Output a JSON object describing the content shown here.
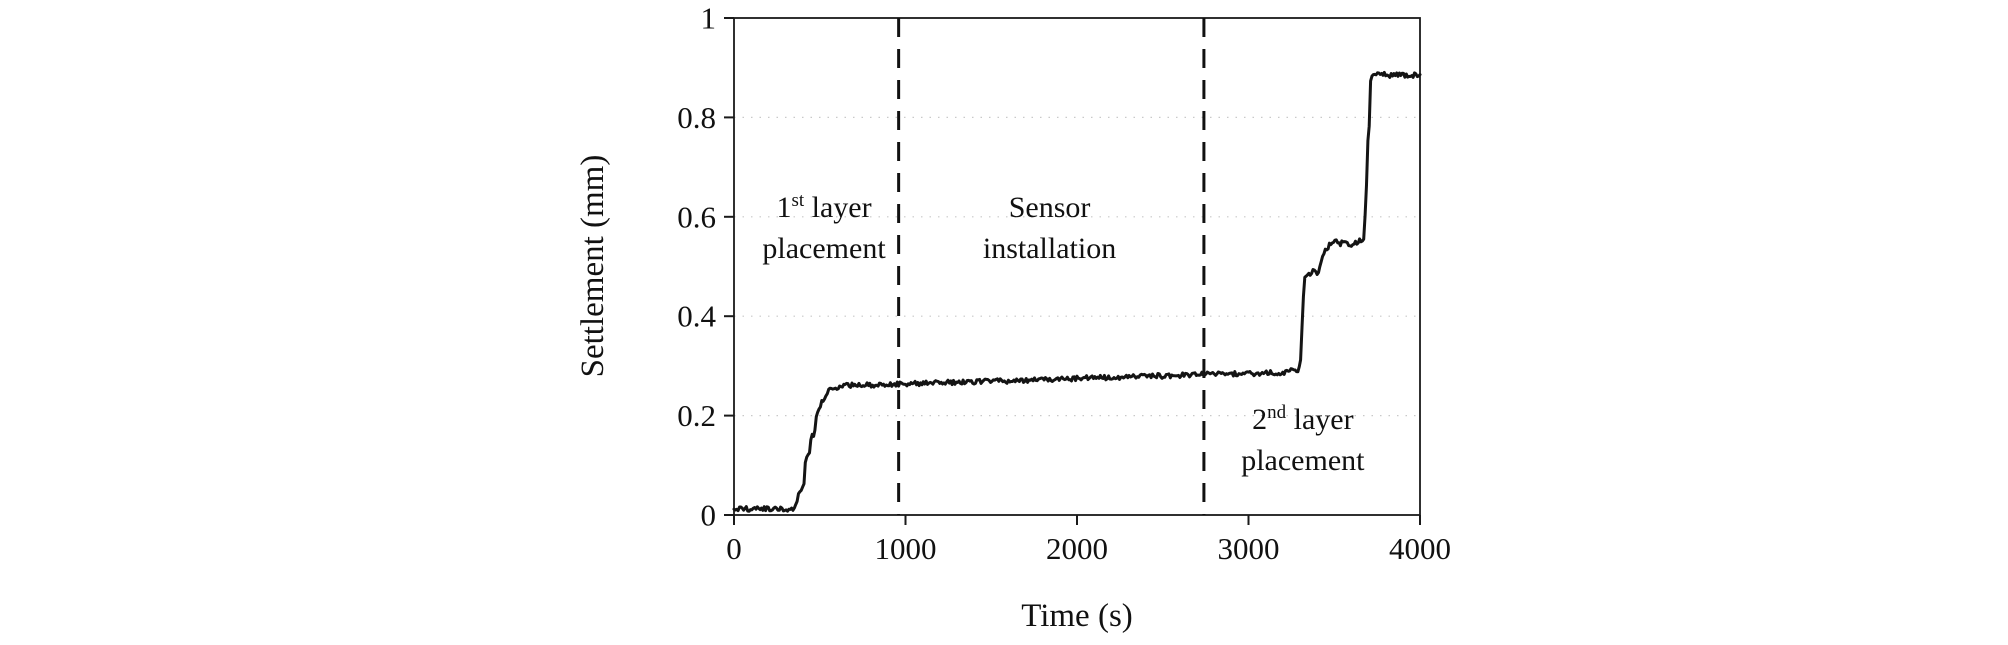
{
  "chart_data": {
    "type": "line",
    "title": "",
    "xlabel": "Time (s)",
    "ylabel": "Settlement (mm)",
    "xlim": [
      0,
      4000
    ],
    "ylim": [
      0,
      1
    ],
    "xticks": [
      0,
      1000,
      2000,
      3000,
      4000
    ],
    "xtick_labels": [
      "0",
      "1000",
      "2000",
      "3000",
      "4000"
    ],
    "yticks": [
      0,
      0.2,
      0.4,
      0.6,
      0.8,
      1
    ],
    "ytick_labels": [
      "0",
      "0.2",
      "0.4",
      "0.6",
      "0.8",
      "1"
    ],
    "grid": "faint dotted horizontal gridlines at y ticks",
    "legend": "none",
    "line_color": "#141414",
    "series": [
      {
        "name": "settlement",
        "color": "#141414",
        "points": [
          [
            0,
            0.012
          ],
          [
            340,
            0.012
          ],
          [
            365,
            0.02
          ],
          [
            378,
            0.048
          ],
          [
            405,
            0.052
          ],
          [
            418,
            0.115
          ],
          [
            438,
            0.122
          ],
          [
            452,
            0.158
          ],
          [
            468,
            0.163
          ],
          [
            482,
            0.205
          ],
          [
            502,
            0.218
          ],
          [
            522,
            0.235
          ],
          [
            548,
            0.248
          ],
          [
            585,
            0.256
          ],
          [
            650,
            0.261
          ],
          [
            900,
            0.263
          ],
          [
            1200,
            0.266
          ],
          [
            1500,
            0.269
          ],
          [
            1800,
            0.272
          ],
          [
            2100,
            0.276
          ],
          [
            2400,
            0.279
          ],
          [
            2700,
            0.282
          ],
          [
            3000,
            0.285
          ],
          [
            3200,
            0.287
          ],
          [
            3290,
            0.292
          ],
          [
            3305,
            0.31
          ],
          [
            3315,
            0.4
          ],
          [
            3325,
            0.475
          ],
          [
            3350,
            0.482
          ],
          [
            3375,
            0.49
          ],
          [
            3400,
            0.487
          ],
          [
            3420,
            0.5
          ],
          [
            3435,
            0.528
          ],
          [
            3455,
            0.535
          ],
          [
            3475,
            0.546
          ],
          [
            3500,
            0.552
          ],
          [
            3530,
            0.545
          ],
          [
            3560,
            0.552
          ],
          [
            3590,
            0.541
          ],
          [
            3615,
            0.546
          ],
          [
            3650,
            0.552
          ],
          [
            3672,
            0.558
          ],
          [
            3686,
            0.63
          ],
          [
            3694,
            0.75
          ],
          [
            3702,
            0.76
          ],
          [
            3712,
            0.872
          ],
          [
            3725,
            0.884
          ],
          [
            3760,
            0.889
          ],
          [
            3820,
            0.884
          ],
          [
            3880,
            0.887
          ],
          [
            3940,
            0.884
          ],
          [
            4000,
            0.886
          ]
        ]
      }
    ],
    "vlines": [
      {
        "x": 960,
        "style": "dashed",
        "color": "#111111"
      },
      {
        "x": 2740,
        "style": "dashed",
        "color": "#111111"
      }
    ],
    "annotations": [
      {
        "x": 525,
        "y": 0.6,
        "plain_text": "1st layer placement",
        "lines": [
          [
            {
              "t": "1"
            },
            {
              "t": "st",
              "sup": true
            },
            {
              "t": " layer"
            }
          ],
          [
            {
              "t": "placement"
            }
          ]
        ]
      },
      {
        "x": 1840,
        "y": 0.6,
        "plain_text": "Sensor installation",
        "lines": [
          [
            {
              "t": "Sensor"
            }
          ],
          [
            {
              "t": "installation"
            }
          ]
        ]
      },
      {
        "x": 3317,
        "y": 0.173,
        "plain_text": "2nd layer placement",
        "lines": [
          [
            {
              "t": "2"
            },
            {
              "t": "nd",
              "sup": true
            },
            {
              "t": " layer"
            }
          ],
          [
            {
              "t": "placement"
            }
          ]
        ]
      }
    ]
  }
}
